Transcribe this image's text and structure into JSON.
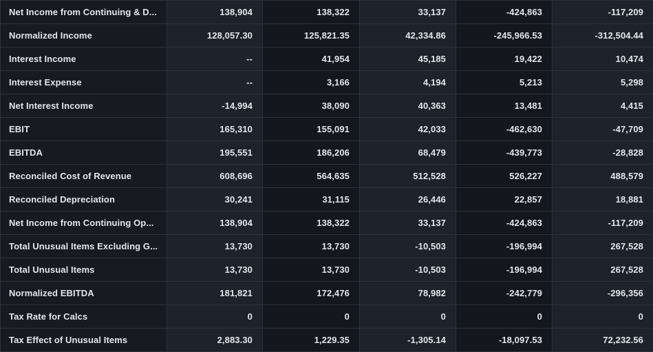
{
  "colors": {
    "page_bg": "#0d0f13",
    "label_column_bg": "#171a20",
    "data_column_light_bg": "#1e222b",
    "data_column_dark_bg": "#14171d",
    "border": "#2d323b",
    "text": "#e3e6ea"
  },
  "table": {
    "rows": [
      {
        "label": "Net Income from Continuing & D...",
        "values": [
          "138,904",
          "138,322",
          "33,137",
          "-424,863",
          "-117,209"
        ]
      },
      {
        "label": "Normalized Income",
        "values": [
          "128,057.30",
          "125,821.35",
          "42,334.86",
          "-245,966.53",
          "-312,504.44"
        ]
      },
      {
        "label": "Interest Income",
        "values": [
          "--",
          "41,954",
          "45,185",
          "19,422",
          "10,474"
        ]
      },
      {
        "label": "Interest Expense",
        "values": [
          "--",
          "3,166",
          "4,194",
          "5,213",
          "5,298"
        ]
      },
      {
        "label": "Net Interest Income",
        "values": [
          "-14,994",
          "38,090",
          "40,363",
          "13,481",
          "4,415"
        ]
      },
      {
        "label": "EBIT",
        "values": [
          "165,310",
          "155,091",
          "42,033",
          "-462,630",
          "-47,709"
        ]
      },
      {
        "label": "EBITDA",
        "values": [
          "195,551",
          "186,206",
          "68,479",
          "-439,773",
          "-28,828"
        ]
      },
      {
        "label": "Reconciled Cost of Revenue",
        "values": [
          "608,696",
          "564,635",
          "512,528",
          "526,227",
          "488,579"
        ]
      },
      {
        "label": "Reconciled Depreciation",
        "values": [
          "30,241",
          "31,115",
          "26,446",
          "22,857",
          "18,881"
        ]
      },
      {
        "label": "Net Income from Continuing Op...",
        "values": [
          "138,904",
          "138,322",
          "33,137",
          "-424,863",
          "-117,209"
        ]
      },
      {
        "label": "Total Unusual Items Excluding G...",
        "values": [
          "13,730",
          "13,730",
          "-10,503",
          "-196,994",
          "267,528"
        ]
      },
      {
        "label": "Total Unusual Items",
        "values": [
          "13,730",
          "13,730",
          "-10,503",
          "-196,994",
          "267,528"
        ]
      },
      {
        "label": "Normalized EBITDA",
        "values": [
          "181,821",
          "172,476",
          "78,982",
          "-242,779",
          "-296,356"
        ]
      },
      {
        "label": "Tax Rate for Calcs",
        "values": [
          "0",
          "0",
          "0",
          "0",
          "0"
        ]
      },
      {
        "label": "Tax Effect of Unusual Items",
        "values": [
          "2,883.30",
          "1,229.35",
          "-1,305.14",
          "-18,097.53",
          "72,232.56"
        ]
      }
    ]
  }
}
